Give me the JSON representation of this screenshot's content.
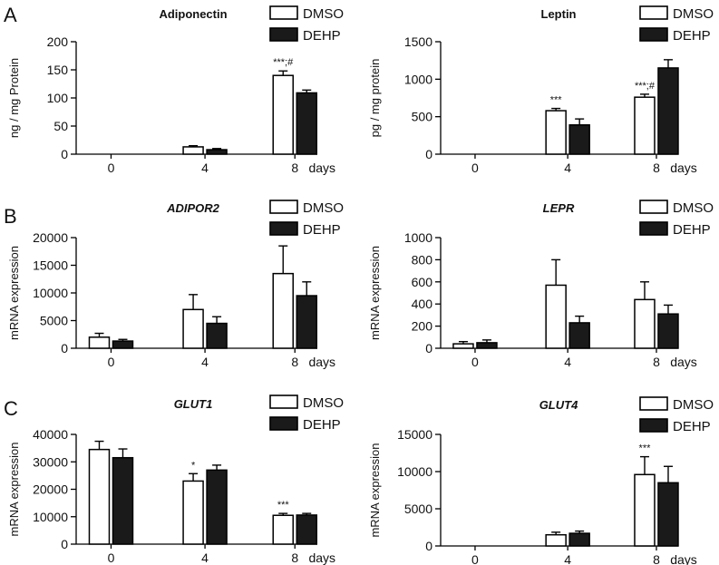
{
  "panel_letters": [
    "A",
    "B",
    "C"
  ],
  "series_style": {
    "DMSO": {
      "fill": "#ffffff",
      "stroke": "#000000"
    },
    "DEHP": {
      "fill": "#1a1a1a",
      "stroke": "#000000"
    }
  },
  "chart_data": [
    {
      "id": "adiponectin",
      "type": "bar",
      "title": "Adiponectin",
      "title_italic": false,
      "ylabel": "ng / mg Protein",
      "ylim": [
        0,
        200
      ],
      "yticks": [
        0,
        50,
        100,
        150,
        200
      ],
      "categories": [
        "0",
        "4",
        "8"
      ],
      "xunit": "days",
      "legend": [
        "DMSO",
        "DEHP"
      ],
      "series": [
        {
          "name": "DMSO",
          "values": [
            0,
            13,
            140
          ],
          "errors": [
            0,
            2,
            8
          ]
        },
        {
          "name": "DEHP",
          "values": [
            0,
            8,
            109
          ],
          "errors": [
            0,
            2,
            5
          ]
        }
      ],
      "annotations": [
        {
          "series": "DMSO",
          "category": "8",
          "text": "***;#"
        }
      ]
    },
    {
      "id": "leptin",
      "type": "bar",
      "title": "Leptin",
      "title_italic": false,
      "ylabel": "pg / mg protein",
      "ylim": [
        0,
        1500
      ],
      "yticks": [
        0,
        500,
        1000,
        1500
      ],
      "categories": [
        "0",
        "4",
        "8"
      ],
      "xunit": "days",
      "legend": [
        "DMSO",
        "DEHP"
      ],
      "series": [
        {
          "name": "DMSO",
          "values": [
            0,
            580,
            760
          ],
          "errors": [
            0,
            30,
            40
          ]
        },
        {
          "name": "DEHP",
          "values": [
            0,
            390,
            1150
          ],
          "errors": [
            0,
            80,
            110
          ]
        }
      ],
      "annotations": [
        {
          "series": "DMSO",
          "category": "4",
          "text": "***"
        },
        {
          "series": "DMSO",
          "category": "8",
          "text": "***;#"
        }
      ]
    },
    {
      "id": "adipor2",
      "type": "bar",
      "title": "ADIPOR2",
      "title_italic": true,
      "ylabel": "mRNA expression",
      "ylim": [
        0,
        20000
      ],
      "yticks": [
        0,
        5000,
        10000,
        15000,
        20000
      ],
      "categories": [
        "0",
        "4",
        "8"
      ],
      "xunit": "days",
      "legend": [
        "DMSO",
        "DEHP"
      ],
      "series": [
        {
          "name": "DMSO",
          "values": [
            2000,
            7000,
            13500
          ],
          "errors": [
            700,
            2700,
            5000
          ]
        },
        {
          "name": "DEHP",
          "values": [
            1300,
            4500,
            9500
          ],
          "errors": [
            300,
            1200,
            2500
          ]
        }
      ],
      "annotations": []
    },
    {
      "id": "lepr",
      "type": "bar",
      "title": "LEPR",
      "title_italic": true,
      "ylabel": "mRNA expression",
      "ylim": [
        0,
        1000
      ],
      "yticks": [
        0,
        200,
        400,
        600,
        800,
        1000
      ],
      "categories": [
        "0",
        "4",
        "8"
      ],
      "xunit": "days",
      "legend": [
        "DMSO",
        "DEHP"
      ],
      "series": [
        {
          "name": "DMSO",
          "values": [
            40,
            570,
            440
          ],
          "errors": [
            20,
            230,
            160
          ]
        },
        {
          "name": "DEHP",
          "values": [
            50,
            230,
            310
          ],
          "errors": [
            25,
            60,
            80
          ]
        }
      ],
      "annotations": []
    },
    {
      "id": "glut1",
      "type": "bar",
      "title": "GLUT1",
      "title_italic": true,
      "ylabel": "mRNA expression",
      "ylim": [
        0,
        40000
      ],
      "yticks": [
        0,
        10000,
        20000,
        30000,
        40000
      ],
      "categories": [
        "0",
        "4",
        "8"
      ],
      "xunit": "days",
      "legend": [
        "DMSO",
        "DEHP"
      ],
      "series": [
        {
          "name": "DMSO",
          "values": [
            34500,
            23000,
            10500
          ],
          "errors": [
            3000,
            2700,
            700
          ]
        },
        {
          "name": "DEHP",
          "values": [
            31500,
            27000,
            10600
          ],
          "errors": [
            3200,
            1800,
            600
          ]
        }
      ],
      "annotations": [
        {
          "series": "DMSO",
          "category": "4",
          "text": "*"
        },
        {
          "series": "DMSO",
          "category": "8",
          "text": "***"
        }
      ]
    },
    {
      "id": "glut4",
      "type": "bar",
      "title": "GLUT4",
      "title_italic": true,
      "ylabel": "mRNA expression",
      "ylim": [
        0,
        15000
      ],
      "yticks": [
        0,
        5000,
        10000,
        15000
      ],
      "categories": [
        "0",
        "4",
        "8"
      ],
      "xunit": "days",
      "legend": [
        "DMSO",
        "DEHP"
      ],
      "series": [
        {
          "name": "DMSO",
          "values": [
            0,
            1500,
            9600
          ],
          "errors": [
            0,
            350,
            2400
          ]
        },
        {
          "name": "DEHP",
          "values": [
            0,
            1700,
            8500
          ],
          "errors": [
            0,
            300,
            2200
          ]
        }
      ],
      "annotations": [
        {
          "series": "DMSO",
          "category": "8",
          "text": "***"
        }
      ]
    }
  ]
}
